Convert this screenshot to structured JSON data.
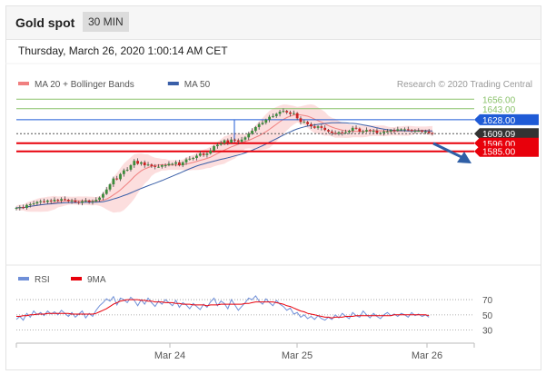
{
  "header": {
    "title": "Gold spot",
    "interval": "30 MIN"
  },
  "datetime": "Thursday, March 26, 2020 1:00:14 AM CET",
  "credit": "Research © 2020 Trading Central",
  "colors": {
    "up": "#3c8c3c",
    "down": "#cc2222",
    "ma20": "#f08080",
    "ma50": "#3a5fa8",
    "band": "#fbd3d3",
    "resistance": "#1f5bd6",
    "resistance_green": "#8ac26a",
    "support": "#e8000b",
    "current": "#333333",
    "rsi": "#6f8fd8",
    "ma9": "#e8000b",
    "arrow": "#2f5fa6"
  },
  "chart_data": [
    {
      "type": "candlestick",
      "legend": [
        {
          "name": "MA 20 + Bollinger Bands",
          "color": "#f08080"
        },
        {
          "name": "MA 50",
          "color": "#3a5fa8"
        }
      ],
      "x_ticks": [
        "Mar 24",
        "Mar 25",
        "Mar 26"
      ],
      "y_range": [
        1435,
        1665
      ],
      "price_levels": [
        {
          "value": 1656.0,
          "label": "1656.00",
          "kind": "resistance-green"
        },
        {
          "value": 1643.0,
          "label": "1643.00",
          "kind": "resistance-green"
        },
        {
          "value": 1628.0,
          "label": "1628.00",
          "kind": "resistance"
        },
        {
          "value": 1609.09,
          "label": "1609.09",
          "kind": "current"
        },
        {
          "value": 1596.0,
          "label": "1596.00",
          "kind": "support"
        },
        {
          "value": 1585.0,
          "label": "1585.00",
          "kind": "support"
        }
      ],
      "close_series": [
        1508,
        1509,
        1508,
        1512,
        1513,
        1514,
        1516,
        1517,
        1516,
        1518,
        1517,
        1519,
        1518,
        1520,
        1519,
        1517,
        1518,
        1516,
        1515,
        1517,
        1518,
        1516,
        1517,
        1519,
        1522,
        1527,
        1533,
        1540,
        1548,
        1547,
        1554,
        1559,
        1560,
        1566,
        1572,
        1568,
        1570,
        1566,
        1567,
        1565,
        1564,
        1564,
        1566,
        1566,
        1568,
        1568,
        1570,
        1566,
        1570,
        1574,
        1575,
        1576,
        1579,
        1582,
        1580,
        1582,
        1586,
        1592,
        1594,
        1596,
        1600,
        1597,
        1601,
        1600,
        1598,
        1601,
        1604,
        1609,
        1613,
        1618,
        1622,
        1624,
        1628,
        1632,
        1633,
        1636,
        1639,
        1640,
        1638,
        1636,
        1637,
        1630,
        1625,
        1625,
        1622,
        1619,
        1617,
        1619,
        1617,
        1614,
        1612,
        1610,
        1609,
        1611,
        1610,
        1611,
        1613,
        1617,
        1616,
        1612,
        1612,
        1614,
        1613,
        1613,
        1610,
        1610,
        1612,
        1612,
        1614,
        1613,
        1615,
        1615,
        1615,
        1614,
        1613,
        1613,
        1613,
        1612,
        1612,
        1610,
        1609
      ]
    },
    {
      "type": "line",
      "legend": [
        {
          "name": "RSI",
          "color": "#6f8fd8"
        },
        {
          "name": "9MA",
          "color": "#e8000b"
        }
      ],
      "y_ticks": [
        "70",
        "50",
        "30"
      ],
      "y_range": [
        20,
        82
      ],
      "series": [
        {
          "name": "RSI",
          "values": [
            44,
            48,
            43,
            52,
            47,
            55,
            50,
            53,
            49,
            55,
            51,
            54,
            50,
            56,
            52,
            48,
            53,
            47,
            51,
            55,
            46,
            52,
            48,
            56,
            62,
            66,
            71,
            68,
            74,
            63,
            72,
            70,
            66,
            73,
            69,
            62,
            70,
            64,
            72,
            66,
            61,
            68,
            64,
            70,
            66,
            62,
            69,
            60,
            66,
            63,
            58,
            65,
            61,
            57,
            64,
            60,
            67,
            72,
            62,
            68,
            65,
            58,
            70,
            63,
            56,
            61,
            66,
            72,
            70,
            75,
            68,
            64,
            71,
            66,
            62,
            69,
            64,
            61,
            56,
            59,
            51,
            53,
            47,
            50,
            45,
            48,
            44,
            49,
            45,
            43,
            47,
            44,
            50,
            46,
            52,
            48,
            45,
            53,
            49,
            47,
            55,
            50,
            46,
            52,
            48,
            45,
            50,
            53,
            49,
            51,
            48,
            52,
            50,
            47,
            53,
            49,
            51,
            48,
            50,
            47
          ]
        },
        {
          "name": "9MA",
          "values": [
            48,
            48,
            49,
            49,
            50,
            50,
            51,
            51,
            51,
            52,
            52,
            52,
            52,
            52,
            52,
            52,
            51,
            51,
            51,
            51,
            51,
            51,
            51,
            52,
            54,
            56,
            58,
            61,
            64,
            66,
            68,
            69,
            70,
            70,
            70,
            70,
            69,
            69,
            68,
            68,
            67,
            67,
            67,
            66,
            66,
            66,
            65,
            65,
            64,
            64,
            64,
            63,
            63,
            63,
            63,
            62,
            63,
            63,
            63,
            64,
            64,
            64,
            64,
            64,
            64,
            64,
            65,
            65,
            66,
            67,
            67,
            67,
            67,
            67,
            67,
            66,
            65,
            64,
            62,
            61,
            59,
            57,
            55,
            54,
            52,
            51,
            50,
            49,
            48,
            47,
            47,
            46,
            47,
            47,
            47,
            48,
            48,
            48,
            49,
            49,
            49,
            49,
            49,
            49,
            49,
            49,
            49,
            49,
            49,
            50,
            50,
            50,
            50,
            50,
            50,
            50,
            50,
            50,
            50,
            49
          ]
        }
      ]
    }
  ]
}
